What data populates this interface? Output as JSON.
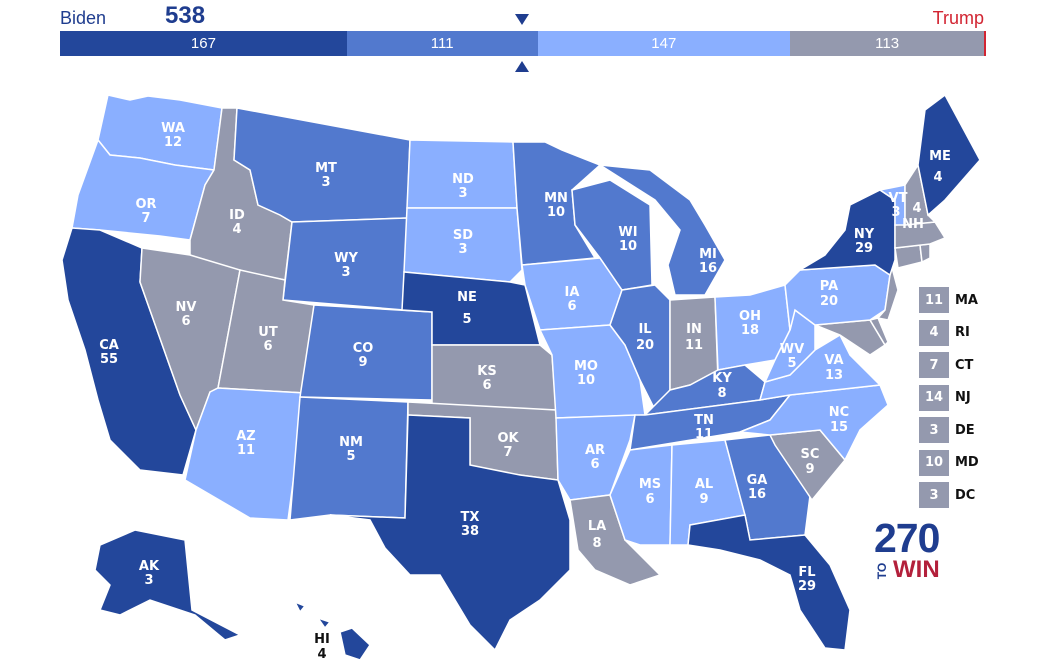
{
  "header": {
    "left_name": "Biden",
    "left_total": "538",
    "right_name": "Trump"
  },
  "bar": [
    {
      "value": 167,
      "label": "167",
      "color": "#23479b"
    },
    {
      "value": 111,
      "label": "111",
      "color": "#5279ce"
    },
    {
      "value": 147,
      "label": "147",
      "color": "#8aafff"
    },
    {
      "value": 113,
      "label": "113",
      "color": "#9499ae"
    }
  ],
  "colors": {
    "solid": "#23479b",
    "likely": "#5279ce",
    "lean": "#8aafff",
    "tossup": "#9499ae",
    "trump": "#d22532"
  },
  "states": [
    {
      "abbr": "WA",
      "ev": "12"
    },
    {
      "abbr": "OR",
      "ev": "7"
    },
    {
      "abbr": "CA",
      "ev": "55"
    },
    {
      "abbr": "ID",
      "ev": "4"
    },
    {
      "abbr": "NV",
      "ev": "6"
    },
    {
      "abbr": "MT",
      "ev": "3"
    },
    {
      "abbr": "WY",
      "ev": "3"
    },
    {
      "abbr": "UT",
      "ev": "6"
    },
    {
      "abbr": "AZ",
      "ev": "11"
    },
    {
      "abbr": "CO",
      "ev": "9"
    },
    {
      "abbr": "NM",
      "ev": "5"
    },
    {
      "abbr": "ND",
      "ev": "3"
    },
    {
      "abbr": "SD",
      "ev": "3"
    },
    {
      "abbr": "NE",
      "ev": "5"
    },
    {
      "abbr": "KS",
      "ev": "6"
    },
    {
      "abbr": "OK",
      "ev": "7"
    },
    {
      "abbr": "TX",
      "ev": "38"
    },
    {
      "abbr": "MN",
      "ev": "10"
    },
    {
      "abbr": "IA",
      "ev": "6"
    },
    {
      "abbr": "MO",
      "ev": "10"
    },
    {
      "abbr": "AR",
      "ev": "6"
    },
    {
      "abbr": "LA",
      "ev": "8"
    },
    {
      "abbr": "WI",
      "ev": "10"
    },
    {
      "abbr": "IL",
      "ev": "20"
    },
    {
      "abbr": "MI",
      "ev": "16"
    },
    {
      "abbr": "IN",
      "ev": "11"
    },
    {
      "abbr": "OH",
      "ev": "18"
    },
    {
      "abbr": "KY",
      "ev": "8"
    },
    {
      "abbr": "TN",
      "ev": "11"
    },
    {
      "abbr": "MS",
      "ev": "6"
    },
    {
      "abbr": "AL",
      "ev": "9"
    },
    {
      "abbr": "GA",
      "ev": "16"
    },
    {
      "abbr": "FL",
      "ev": "29"
    },
    {
      "abbr": "SC",
      "ev": "9"
    },
    {
      "abbr": "NC",
      "ev": "15"
    },
    {
      "abbr": "VA",
      "ev": "13"
    },
    {
      "abbr": "WV",
      "ev": "5"
    },
    {
      "abbr": "PA",
      "ev": "20"
    },
    {
      "abbr": "NY",
      "ev": "29"
    },
    {
      "abbr": "VT",
      "ev": "3"
    },
    {
      "abbr": "NH",
      "ev": "4"
    },
    {
      "abbr": "ME",
      "ev": "4"
    },
    {
      "abbr": "AK",
      "ev": "3"
    },
    {
      "abbr": "HI",
      "ev": "4"
    }
  ],
  "small_states": [
    {
      "ev": "11",
      "abbr": "MA"
    },
    {
      "ev": "4",
      "abbr": "RI"
    },
    {
      "ev": "7",
      "abbr": "CT"
    },
    {
      "ev": "14",
      "abbr": "NJ"
    },
    {
      "ev": "3",
      "abbr": "DE"
    },
    {
      "ev": "10",
      "abbr": "MD"
    },
    {
      "ev": "3",
      "abbr": "DC"
    }
  ],
  "logo": {
    "number": "270",
    "to": "TO",
    "win": "WIN"
  }
}
